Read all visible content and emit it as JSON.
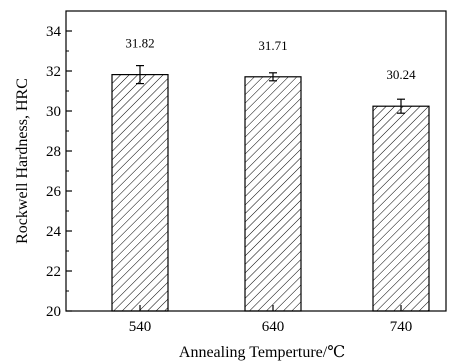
{
  "chart_data": {
    "type": "bar",
    "title": "",
    "xlabel": "Annealing Temperture/℃",
    "ylabel": "Rockwell Hardness, HRC",
    "categories": [
      "540",
      "640",
      "740"
    ],
    "values": [
      31.82,
      31.71,
      30.24
    ],
    "value_labels": [
      "31.82",
      "31.71",
      "30.24"
    ],
    "error": [
      0.45,
      0.2,
      0.35
    ],
    "ylim": [
      20,
      35
    ],
    "yticks": [
      20,
      22,
      24,
      26,
      28,
      30,
      32,
      34
    ],
    "ytick_labels": [
      "20",
      "22",
      "24",
      "26",
      "28",
      "30",
      "32",
      "34"
    ],
    "grid": false,
    "bar_fill": "diagonal-hatch",
    "colors": {
      "bar_edge": "#000000",
      "hatch": "#000000",
      "background": "#ffffff"
    }
  }
}
